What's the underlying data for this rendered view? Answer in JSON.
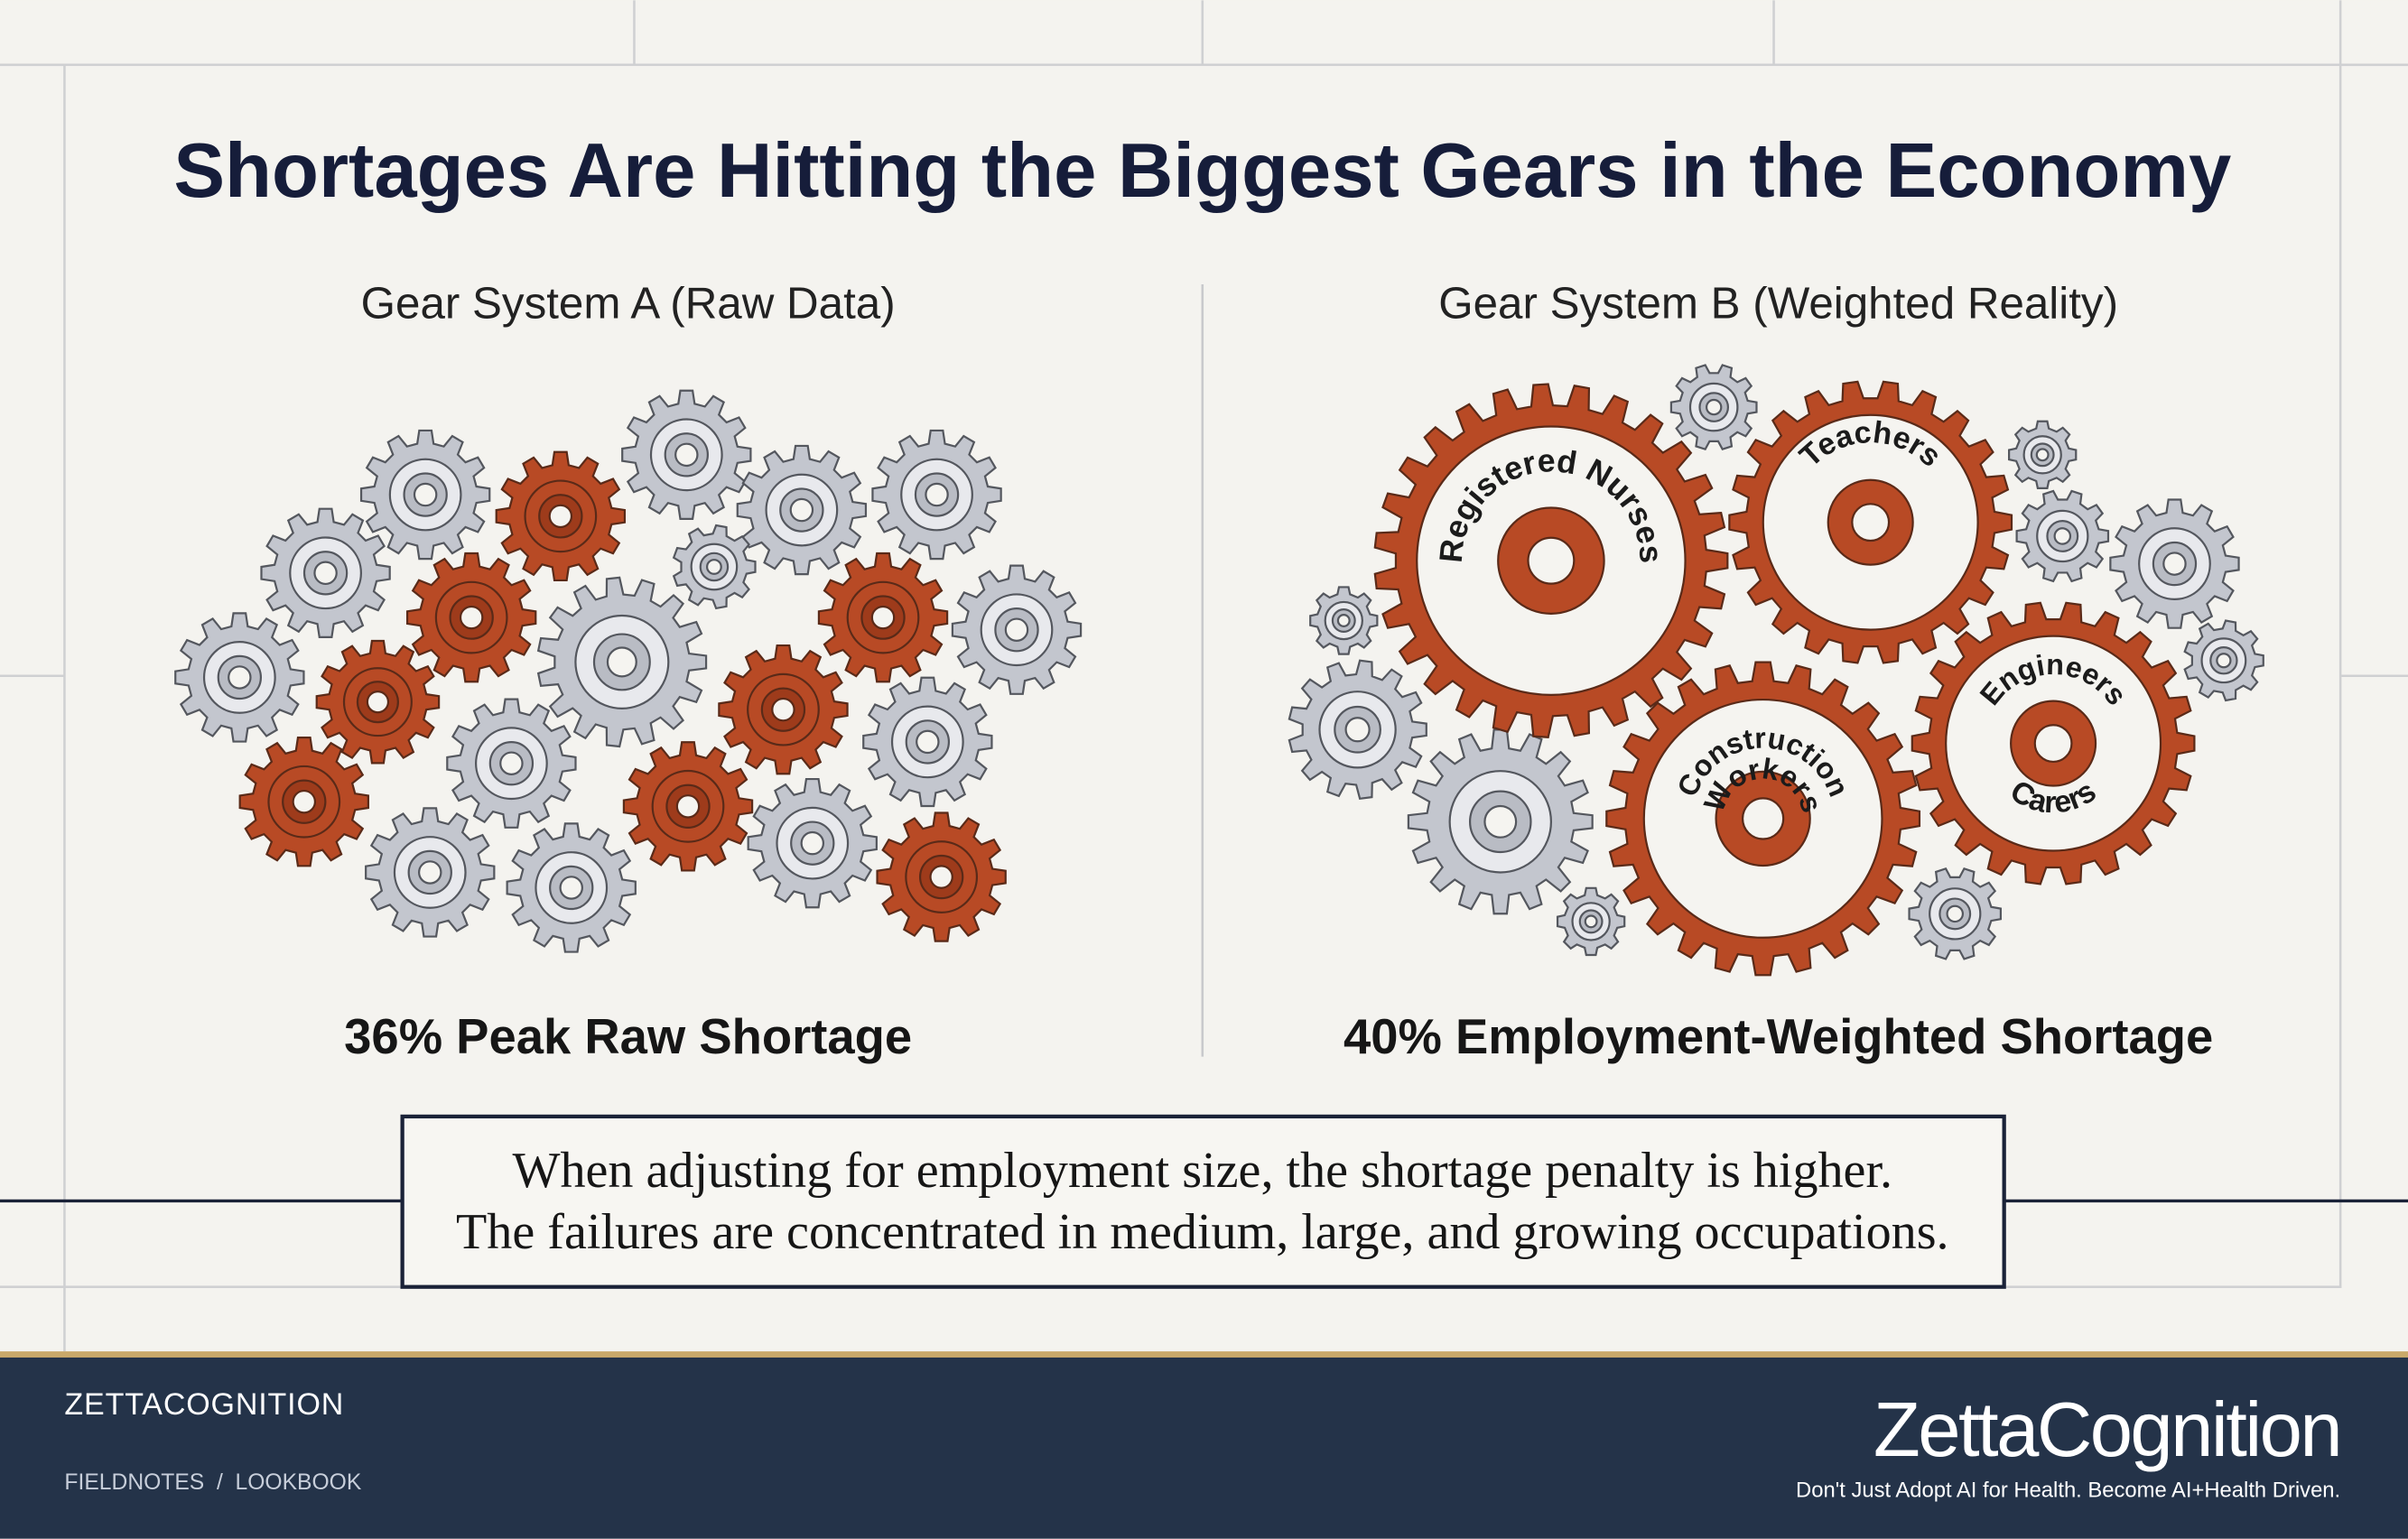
{
  "title": "Shortages Are Hitting the Biggest Gears in the Economy",
  "panels": [
    {
      "heading": "Gear System A (Raw Data)",
      "stat": "36% Peak Raw Shortage"
    },
    {
      "heading": "Gear System B (Weighted Reality)",
      "stat": "40% Employment-Weighted Shortage",
      "gear_labels": [
        "Registered Nurses",
        "Teachers",
        "Construction",
        "Workers",
        "Engineers",
        "Carers"
      ]
    }
  ],
  "callout": [
    "When adjusting for employment size, the shortage penalty is higher.",
    "The failures are concentrated in medium, large, and growing occupations."
  ],
  "footer": {
    "brand": "ZETTACOGNITION",
    "nav": "FIELDNOTES  /  LOOKBOOK",
    "logo": "ZettaCognition",
    "tagline": "Don't Just Adopt AI for Health. Become AI+Health Driven."
  }
}
